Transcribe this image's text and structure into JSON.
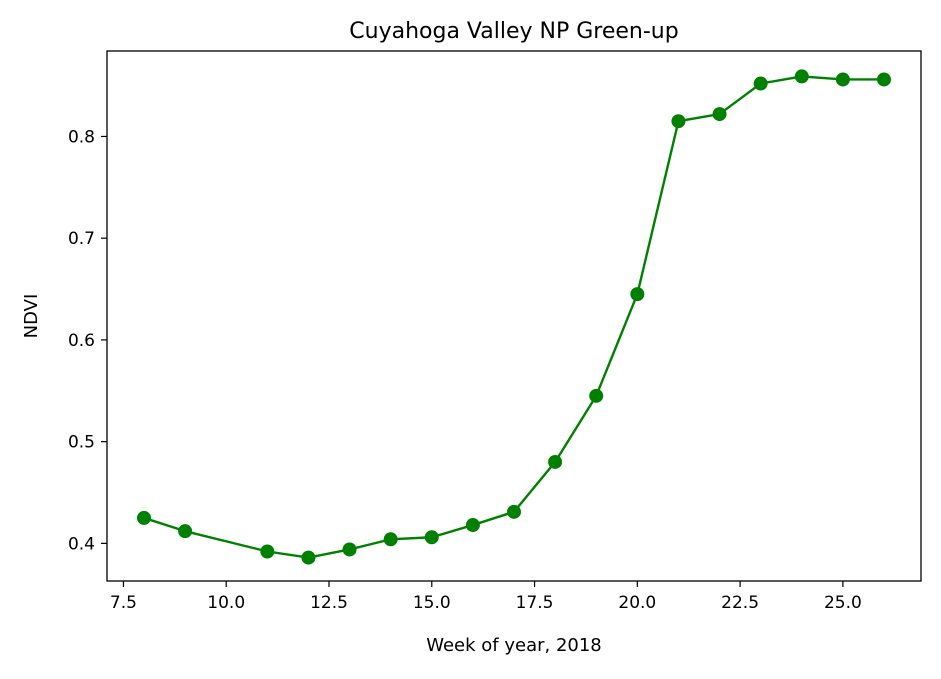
{
  "chart_data": {
    "type": "line",
    "title": "Cuyahoga Valley NP Green-up",
    "xlabel": "Week of year, 2018",
    "ylabel": "NDVI",
    "xlim": [
      7.1,
      26.9
    ],
    "ylim": [
      0.363,
      0.884
    ],
    "xticks": [
      "7.5",
      "10.0",
      "12.5",
      "15.0",
      "17.5",
      "20.0",
      "22.5",
      "25.0"
    ],
    "yticks": [
      "0.4",
      "0.5",
      "0.6",
      "0.7",
      "0.8"
    ],
    "grid": false,
    "series": [
      {
        "color": "#008000",
        "marker": "circle",
        "x": [
          8,
          9,
          11,
          12,
          13,
          14,
          15,
          16,
          17,
          18,
          19,
          20,
          21,
          22,
          23,
          24,
          25,
          26
        ],
        "y": [
          0.425,
          0.412,
          0.392,
          0.386,
          0.394,
          0.404,
          0.406,
          0.418,
          0.431,
          0.48,
          0.545,
          0.645,
          0.815,
          0.822,
          0.852,
          0.859,
          0.856,
          0.856
        ]
      }
    ]
  }
}
